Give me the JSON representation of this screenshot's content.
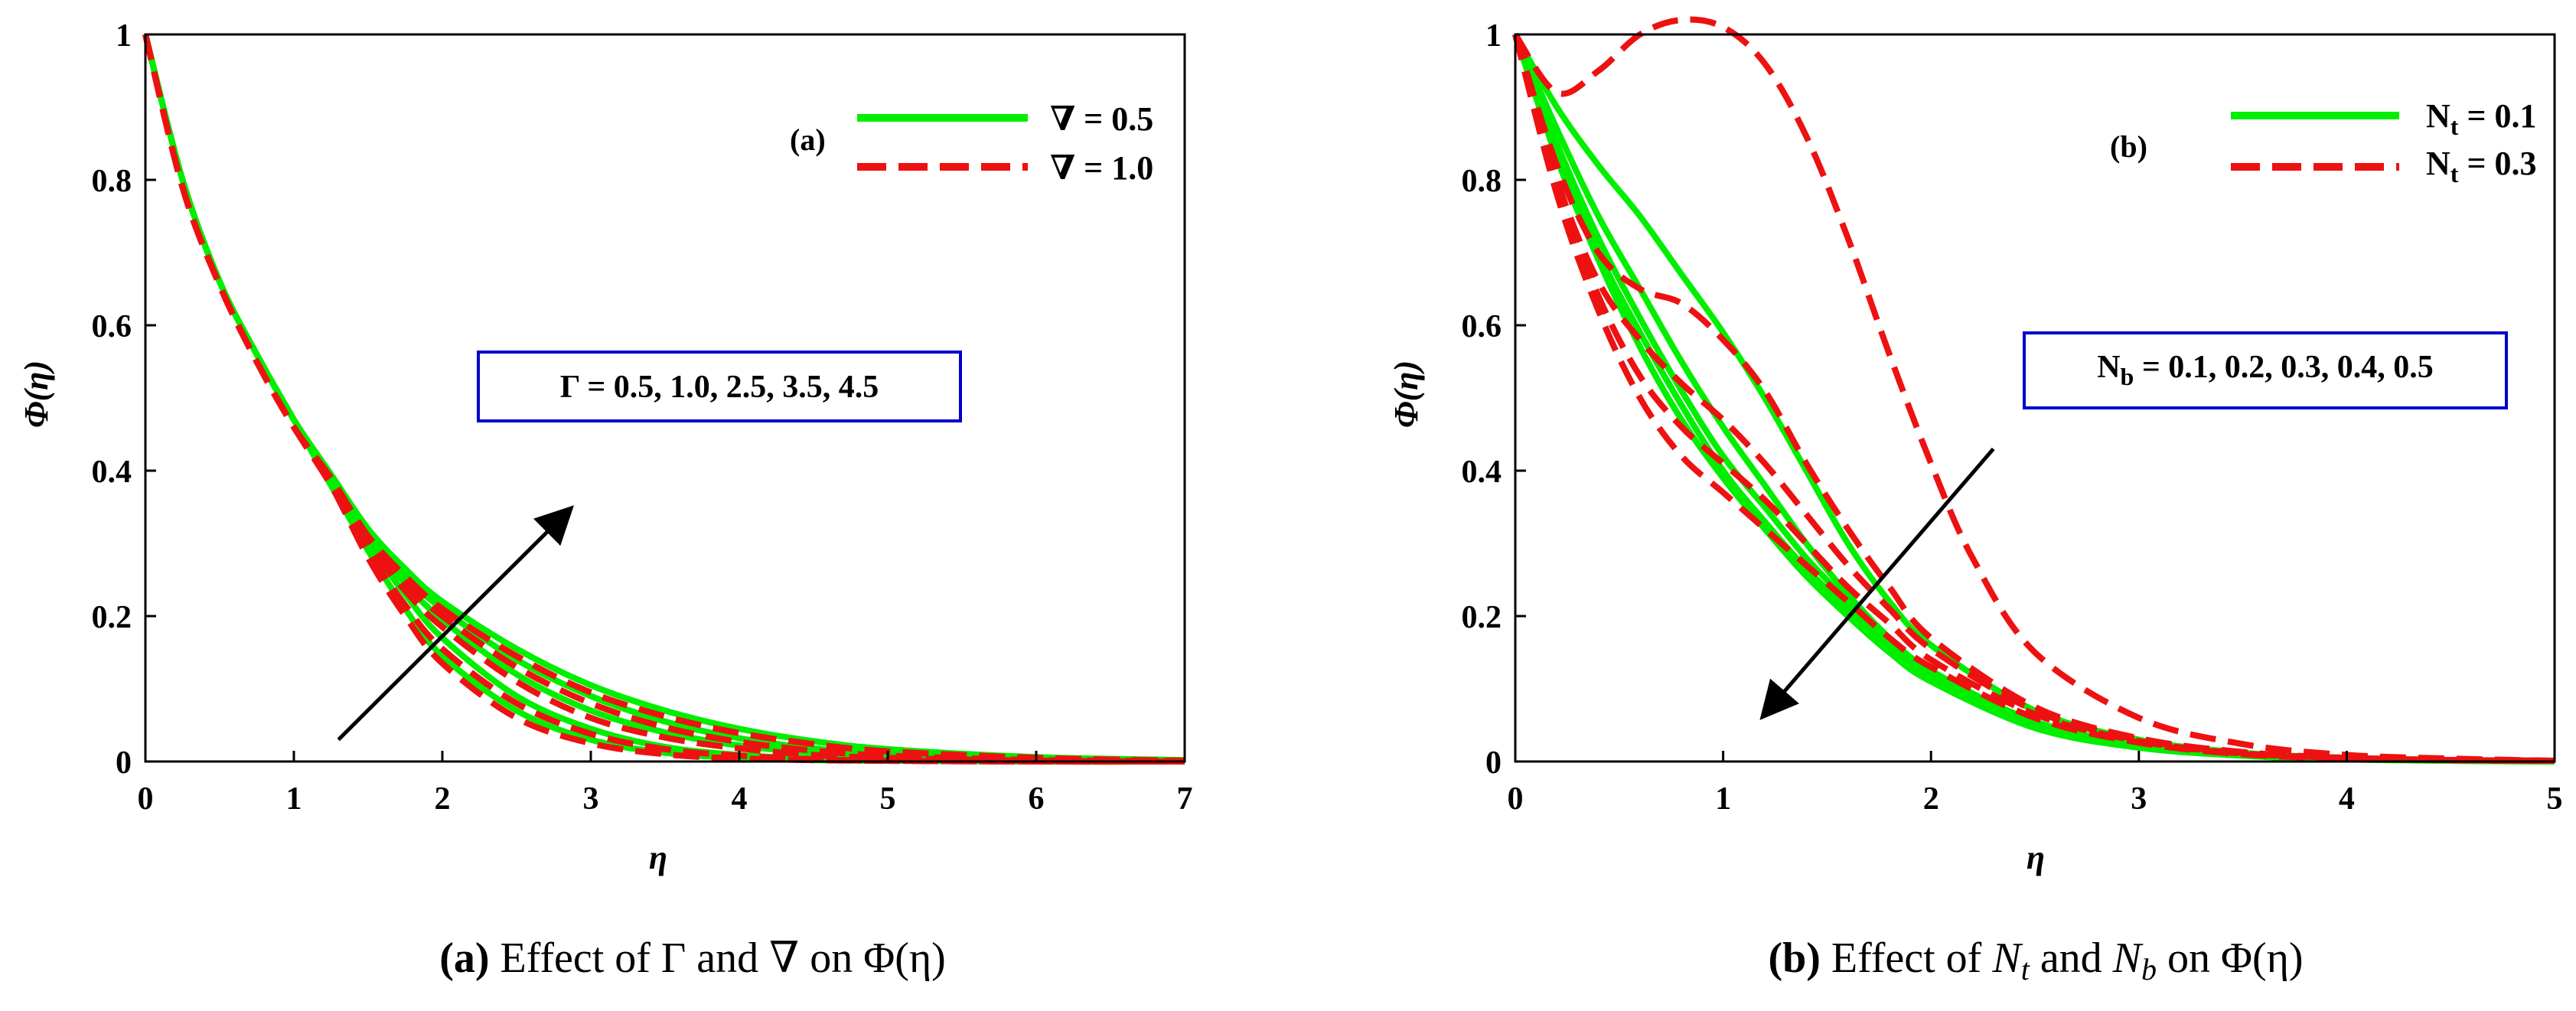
{
  "colors": {
    "green": "#00ee00",
    "red": "#ee1111",
    "box": "#0000cc",
    "axis": "#000000"
  },
  "chart_data": [
    {
      "id": "a",
      "type": "line",
      "panel_tag": "(a)",
      "ylabel": "Φ(η)",
      "xlabel": "η",
      "xlim": [
        0,
        7
      ],
      "ylim": [
        0,
        1
      ],
      "xticks": [
        "0",
        "1",
        "2",
        "3",
        "4",
        "5",
        "6",
        "7"
      ],
      "yticks": [
        "0",
        "0.2",
        "0.4",
        "0.6",
        "0.8",
        "1"
      ],
      "legend": [
        {
          "label": "∇ = 0.5",
          "style": "solid",
          "color": "green"
        },
        {
          "label": "∇ = 1.0",
          "style": "dashed",
          "color": "red"
        }
      ],
      "annotation": "Γ = 0.5, 1.0, 2.5, 3.5, 4.5",
      "arrow": {
        "from": [
          1.3,
          0.03
        ],
        "to": [
          2.85,
          0.345
        ]
      },
      "caption": {
        "tag": "(a)",
        "text": " Effect of Γ and ∇ on Φ(η)"
      },
      "series": [
        {
          "name": "∇ = 0.5, Γ = 0.5",
          "style": "solid",
          "color": "green",
          "x": [
            0,
            0.25,
            0.5,
            0.75,
            1.0,
            1.25,
            1.5,
            1.75,
            2.0,
            2.5,
            3.0,
            3.5,
            4.0,
            4.5,
            5.0,
            6.0,
            7.0
          ],
          "y": [
            1.0,
            0.8,
            0.66,
            0.56,
            0.47,
            0.38,
            0.29,
            0.21,
            0.145,
            0.07,
            0.03,
            0.012,
            0.005,
            0.002,
            0.001,
            0.0,
            0.0
          ]
        },
        {
          "name": "∇ = 0.5, Γ = 1.0",
          "style": "solid",
          "color": "green",
          "x": [
            0,
            0.25,
            0.5,
            0.75,
            1.0,
            1.25,
            1.5,
            1.75,
            2.0,
            2.5,
            3.0,
            3.5,
            4.0,
            4.5,
            5.0,
            6.0,
            7.0
          ],
          "y": [
            1.0,
            0.8,
            0.66,
            0.56,
            0.47,
            0.38,
            0.3,
            0.23,
            0.17,
            0.09,
            0.045,
            0.02,
            0.009,
            0.004,
            0.002,
            0.0,
            0.0
          ]
        },
        {
          "name": "∇ = 0.5, Γ = 2.5",
          "style": "solid",
          "color": "green",
          "x": [
            0,
            0.25,
            0.5,
            0.75,
            1.0,
            1.25,
            1.5,
            1.75,
            2.0,
            2.5,
            3.0,
            3.5,
            4.0,
            4.5,
            5.0,
            6.0,
            7.0
          ],
          "y": [
            1.0,
            0.8,
            0.66,
            0.56,
            0.47,
            0.39,
            0.31,
            0.245,
            0.195,
            0.12,
            0.07,
            0.04,
            0.022,
            0.012,
            0.006,
            0.002,
            0.0
          ]
        },
        {
          "name": "∇ = 0.5, Γ = 3.5",
          "style": "solid",
          "color": "green",
          "x": [
            0,
            0.25,
            0.5,
            0.75,
            1.0,
            1.25,
            1.5,
            1.75,
            2.0,
            2.5,
            3.0,
            3.5,
            4.0,
            4.5,
            5.0,
            6.0,
            7.0
          ],
          "y": [
            1.0,
            0.8,
            0.66,
            0.56,
            0.47,
            0.39,
            0.315,
            0.255,
            0.21,
            0.14,
            0.09,
            0.055,
            0.032,
            0.018,
            0.01,
            0.003,
            0.001
          ]
        },
        {
          "name": "∇ = 0.5, Γ = 4.5",
          "style": "solid",
          "color": "green",
          "x": [
            0,
            0.25,
            0.5,
            0.75,
            1.0,
            1.25,
            1.5,
            1.75,
            2.0,
            2.5,
            3.0,
            3.5,
            4.0,
            4.5,
            5.0,
            6.0,
            7.0
          ],
          "y": [
            1.0,
            0.8,
            0.66,
            0.56,
            0.47,
            0.395,
            0.32,
            0.265,
            0.22,
            0.155,
            0.105,
            0.07,
            0.045,
            0.028,
            0.017,
            0.006,
            0.002
          ]
        },
        {
          "name": "∇ = 1.0, Γ = 0.5",
          "style": "dashed",
          "color": "red",
          "x": [
            0,
            0.25,
            0.5,
            0.75,
            1.0,
            1.25,
            1.5,
            1.75,
            2.0,
            2.5,
            3.0,
            3.5,
            4.0,
            4.5,
            5.0,
            6.0,
            7.0
          ],
          "y": [
            1.0,
            0.79,
            0.655,
            0.55,
            0.46,
            0.38,
            0.28,
            0.2,
            0.135,
            0.06,
            0.025,
            0.01,
            0.004,
            0.002,
            0.001,
            0.0,
            0.0
          ]
        },
        {
          "name": "∇ = 1.0, Γ = 1.0",
          "style": "dashed",
          "color": "red",
          "x": [
            0,
            0.25,
            0.5,
            0.75,
            1.0,
            1.25,
            1.5,
            1.75,
            2.0,
            2.5,
            3.0,
            3.5,
            4.0,
            4.5,
            5.0,
            6.0,
            7.0
          ],
          "y": [
            1.0,
            0.79,
            0.655,
            0.55,
            0.46,
            0.38,
            0.29,
            0.215,
            0.155,
            0.08,
            0.038,
            0.017,
            0.008,
            0.003,
            0.001,
            0.0,
            0.0
          ]
        },
        {
          "name": "∇ = 1.0, Γ = 2.5",
          "style": "dashed",
          "color": "red",
          "x": [
            0,
            0.25,
            0.5,
            0.75,
            1.0,
            1.25,
            1.5,
            1.75,
            2.0,
            2.5,
            3.0,
            3.5,
            4.0,
            4.5,
            5.0,
            6.0,
            7.0
          ],
          "y": [
            1.0,
            0.79,
            0.655,
            0.55,
            0.46,
            0.385,
            0.3,
            0.235,
            0.185,
            0.11,
            0.06,
            0.033,
            0.018,
            0.009,
            0.005,
            0.001,
            0.0
          ]
        },
        {
          "name": "∇ = 1.0, Γ = 3.5",
          "style": "dashed",
          "color": "red",
          "x": [
            0,
            0.25,
            0.5,
            0.75,
            1.0,
            1.25,
            1.5,
            1.75,
            2.0,
            2.5,
            3.0,
            3.5,
            4.0,
            4.5,
            5.0,
            6.0,
            7.0
          ],
          "y": [
            1.0,
            0.79,
            0.655,
            0.55,
            0.46,
            0.385,
            0.305,
            0.245,
            0.2,
            0.13,
            0.08,
            0.047,
            0.027,
            0.015,
            0.008,
            0.002,
            0.001
          ]
        },
        {
          "name": "∇ = 1.0, Γ = 4.5",
          "style": "dashed",
          "color": "red",
          "x": [
            0,
            0.25,
            0.5,
            0.75,
            1.0,
            1.25,
            1.5,
            1.75,
            2.0,
            2.5,
            3.0,
            3.5,
            4.0,
            4.5,
            5.0,
            6.0,
            7.0
          ],
          "y": [
            1.0,
            0.79,
            0.655,
            0.55,
            0.46,
            0.39,
            0.31,
            0.255,
            0.21,
            0.145,
            0.095,
            0.062,
            0.039,
            0.024,
            0.014,
            0.005,
            0.001
          ]
        }
      ]
    },
    {
      "id": "b",
      "type": "line",
      "panel_tag": "(b)",
      "ylabel": "Φ(η)",
      "xlabel": "η",
      "xlim": [
        0,
        5
      ],
      "ylim": [
        0,
        1
      ],
      "xticks": [
        "0",
        "1",
        "2",
        "3",
        "4",
        "5"
      ],
      "yticks": [
        "0",
        "0.2",
        "0.4",
        "0.6",
        "0.8",
        "1"
      ],
      "legend": [
        {
          "label": "N",
          "sub": "t",
          "rest": " = 0.1",
          "style": "solid",
          "color": "green"
        },
        {
          "label": "N",
          "sub": "t",
          "rest": " = 0.3",
          "style": "dashed",
          "color": "red"
        }
      ],
      "annotation": {
        "label": "N",
        "sub": "b",
        "rest": " = 0.1, 0.2, 0.3, 0.4, 0.5"
      },
      "arrow": {
        "from": [
          2.3,
          0.43
        ],
        "to": [
          1.2,
          0.065
        ]
      },
      "caption": {
        "tag": "(b)",
        "text1": " Effect of ",
        "n1": "N",
        "s1": "t",
        "text2": " and ",
        "n2": "N",
        "s2": "b",
        "text3": " on Φ(η)"
      },
      "series": [
        {
          "name": "N_t = 0.1, N_b = 0.1",
          "style": "solid",
          "color": "green",
          "x": [
            0,
            0.2,
            0.4,
            0.6,
            0.8,
            1.0,
            1.2,
            1.4,
            1.6,
            1.8,
            2.0,
            2.5,
            3.0,
            3.5,
            4.0,
            4.5,
            5.0
          ],
          "y": [
            1.0,
            0.9,
            0.82,
            0.75,
            0.67,
            0.59,
            0.5,
            0.4,
            0.3,
            0.22,
            0.16,
            0.07,
            0.03,
            0.012,
            0.005,
            0.002,
            0.001
          ]
        },
        {
          "name": "N_t = 0.1, N_b = 0.2",
          "style": "solid",
          "color": "green",
          "x": [
            0,
            0.2,
            0.4,
            0.6,
            0.8,
            1.0,
            1.2,
            1.4,
            1.6,
            1.8,
            2.0,
            2.5,
            3.0,
            3.5,
            4.0,
            4.5,
            5.0
          ],
          "y": [
            1.0,
            0.87,
            0.75,
            0.65,
            0.55,
            0.46,
            0.38,
            0.3,
            0.23,
            0.17,
            0.125,
            0.055,
            0.024,
            0.01,
            0.004,
            0.002,
            0.001
          ]
        },
        {
          "name": "N_t = 0.1, N_b = 0.3",
          "style": "solid",
          "color": "green",
          "x": [
            0,
            0.2,
            0.4,
            0.6,
            0.8,
            1.0,
            1.2,
            1.4,
            1.6,
            1.8,
            2.0,
            2.5,
            3.0,
            3.5,
            4.0,
            4.5,
            5.0
          ],
          "y": [
            1.0,
            0.85,
            0.72,
            0.61,
            0.51,
            0.42,
            0.35,
            0.28,
            0.22,
            0.16,
            0.12,
            0.05,
            0.022,
            0.009,
            0.004,
            0.002,
            0.001
          ]
        },
        {
          "name": "N_t = 0.1, N_b = 0.4",
          "style": "solid",
          "color": "green",
          "x": [
            0,
            0.2,
            0.4,
            0.6,
            0.8,
            1.0,
            1.2,
            1.4,
            1.6,
            1.8,
            2.0,
            2.5,
            3.0,
            3.5,
            4.0,
            4.5,
            5.0
          ],
          "y": [
            1.0,
            0.84,
            0.7,
            0.59,
            0.49,
            0.4,
            0.33,
            0.265,
            0.21,
            0.155,
            0.115,
            0.048,
            0.02,
            0.008,
            0.003,
            0.001,
            0.0
          ]
        },
        {
          "name": "N_t = 0.1, N_b = 0.5",
          "style": "solid",
          "color": "green",
          "x": [
            0,
            0.2,
            0.4,
            0.6,
            0.8,
            1.0,
            1.2,
            1.4,
            1.6,
            1.8,
            2.0,
            2.5,
            3.0,
            3.5,
            4.0,
            4.5,
            5.0
          ],
          "y": [
            1.0,
            0.83,
            0.69,
            0.57,
            0.47,
            0.39,
            0.32,
            0.255,
            0.2,
            0.15,
            0.11,
            0.046,
            0.019,
            0.008,
            0.003,
            0.001,
            0.0
          ]
        },
        {
          "name": "N_t = 0.3, N_b = 0.1",
          "style": "dashed",
          "color": "red",
          "x": [
            0,
            0.2,
            0.4,
            0.6,
            0.8,
            1.0,
            1.2,
            1.4,
            1.6,
            1.8,
            2.0,
            2.2,
            2.5,
            3.0,
            3.5,
            4.0,
            4.5,
            5.0
          ],
          "y": [
            1.0,
            0.92,
            0.95,
            1.0,
            1.02,
            1.01,
            0.96,
            0.86,
            0.72,
            0.56,
            0.41,
            0.28,
            0.15,
            0.06,
            0.024,
            0.009,
            0.004,
            0.001
          ]
        },
        {
          "name": "N_t = 0.3, N_b = 0.2",
          "style": "dashed",
          "color": "red",
          "x": [
            0,
            0.2,
            0.4,
            0.6,
            0.8,
            1.0,
            1.2,
            1.4,
            1.6,
            1.8,
            2.0,
            2.5,
            3.0,
            3.5,
            4.0,
            4.5,
            5.0
          ],
          "y": [
            1.0,
            0.82,
            0.7,
            0.65,
            0.63,
            0.58,
            0.51,
            0.41,
            0.32,
            0.24,
            0.17,
            0.075,
            0.032,
            0.013,
            0.005,
            0.002,
            0.001
          ]
        },
        {
          "name": "N_t = 0.3, N_b = 0.3",
          "style": "dashed",
          "color": "red",
          "x": [
            0,
            0.2,
            0.4,
            0.6,
            0.8,
            1.0,
            1.2,
            1.4,
            1.6,
            1.8,
            2.0,
            2.5,
            3.0,
            3.5,
            4.0,
            4.5,
            5.0
          ],
          "y": [
            1.0,
            0.8,
            0.66,
            0.58,
            0.52,
            0.47,
            0.41,
            0.34,
            0.27,
            0.21,
            0.155,
            0.07,
            0.03,
            0.012,
            0.005,
            0.002,
            0.001
          ]
        },
        {
          "name": "N_t = 0.3, N_b = 0.4",
          "style": "dashed",
          "color": "red",
          "x": [
            0,
            0.2,
            0.4,
            0.6,
            0.8,
            1.0,
            1.2,
            1.4,
            1.6,
            1.8,
            2.0,
            2.5,
            3.0,
            3.5,
            4.0,
            4.5,
            5.0
          ],
          "y": [
            1.0,
            0.79,
            0.64,
            0.53,
            0.46,
            0.41,
            0.36,
            0.3,
            0.24,
            0.19,
            0.14,
            0.065,
            0.028,
            0.011,
            0.005,
            0.002,
            0.001
          ]
        },
        {
          "name": "N_t = 0.3, N_b = 0.5",
          "style": "dashed",
          "color": "red",
          "x": [
            0,
            0.2,
            0.4,
            0.6,
            0.8,
            1.0,
            1.2,
            1.4,
            1.6,
            1.8,
            2.0,
            2.5,
            3.0,
            3.5,
            4.0,
            4.5,
            5.0
          ],
          "y": [
            1.0,
            0.78,
            0.62,
            0.5,
            0.42,
            0.37,
            0.32,
            0.27,
            0.22,
            0.17,
            0.13,
            0.06,
            0.026,
            0.01,
            0.004,
            0.002,
            0.001
          ]
        }
      ]
    }
  ]
}
